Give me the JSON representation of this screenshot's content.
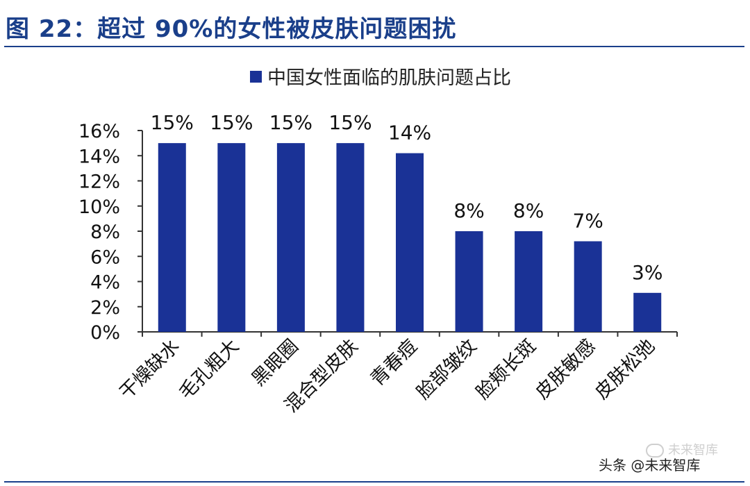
{
  "figure": {
    "title": "图 22：超过 90%的女性被皮肤问题困扰"
  },
  "chart_data": {
    "type": "bar",
    "legend": {
      "label": "中国女性面临的肌肤问题占比",
      "position": "top-center"
    },
    "categories": [
      "干燥缺水",
      "毛孔粗大",
      "黑眼圈",
      "混合型皮肤",
      "青春痘",
      "脸部皱纹",
      "脸颊长斑",
      "皮肤敏感",
      "皮肤松弛"
    ],
    "series": [
      {
        "name": "中国女性面临的肌肤问题占比",
        "values": [
          15,
          15,
          15,
          15,
          14.2,
          8,
          8,
          7.2,
          3.1
        ],
        "labels": [
          "15%",
          "15%",
          "15%",
          "15%",
          "14%",
          "8%",
          "8%",
          "7%",
          "3%"
        ],
        "color": "#1a3296"
      }
    ],
    "ylim": [
      0,
      16
    ],
    "yticks": [
      "0%",
      "2%",
      "4%",
      "6%",
      "8%",
      "10%",
      "12%",
      "14%",
      "16%"
    ],
    "grid": false
  },
  "watermark": {
    "source": "头条 @未来智库",
    "wechat": "未来智库"
  }
}
